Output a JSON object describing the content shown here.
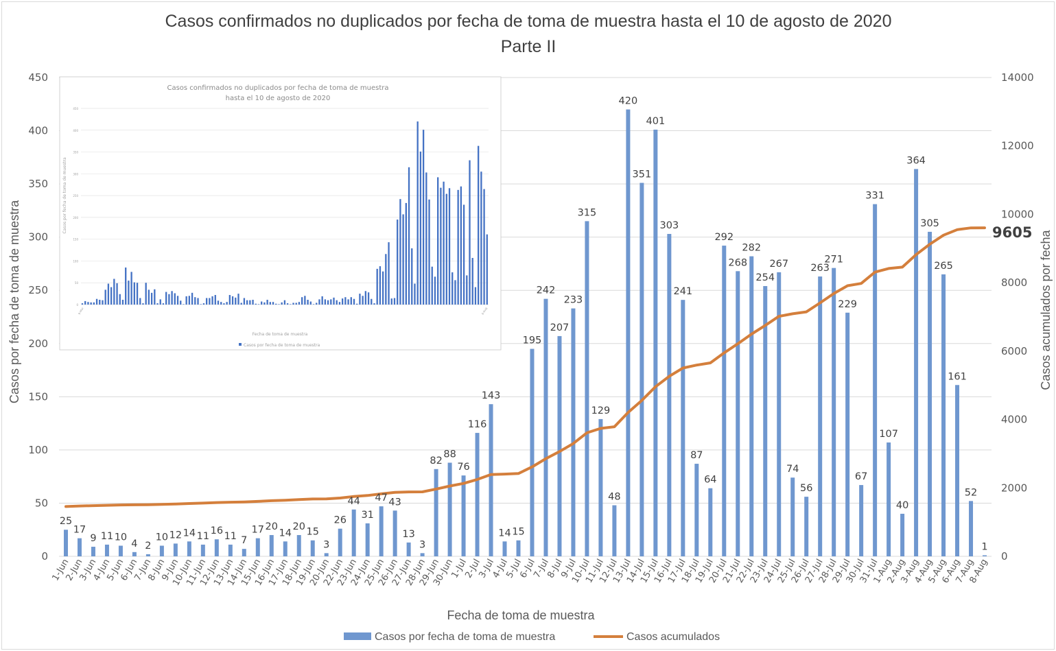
{
  "chart_data": {
    "type": "bar+line",
    "title": "Casos confirmados no duplicados por fecha de toma de muestra hasta el 10 de agosto de 2020",
    "subtitle": "Parte II",
    "xlabel": "Fecha de toma de muestra",
    "ylabel": "Casos por fecha de toma de muestra",
    "y2label": "Casos acumulados por fecha",
    "ylim": [
      0,
      450
    ],
    "yticks": [
      0,
      50,
      100,
      150,
      200,
      250,
      300,
      350,
      400,
      450
    ],
    "y2lim": [
      0,
      14000
    ],
    "y2ticks": [
      0,
      2000,
      4000,
      6000,
      8000,
      10000,
      12000,
      14000
    ],
    "grid": true,
    "legend_position": "bottom",
    "categories": [
      "1-Jun",
      "2-Jun",
      "3-Jun",
      "4-Jun",
      "5-Jun",
      "6-Jun",
      "7-Jun",
      "8-Jun",
      "9-Jun",
      "10-Jun",
      "11-Jun",
      "12-Jun",
      "13-Jun",
      "14-Jun",
      "15-Jun",
      "16-Jun",
      "17-Jun",
      "18-Jun",
      "19-Jun",
      "20-Jun",
      "22-Jun",
      "23-Jun",
      "24-Jun",
      "25-Jun",
      "26-Jun",
      "27-Jun",
      "28-Jun",
      "29-Jun",
      "30-Jun",
      "1-Jul",
      "2-Jul",
      "3-Jul",
      "4-Jul",
      "5-Jul",
      "6-Jul",
      "7-Jul",
      "8-Jul",
      "9-Jul",
      "10-Jul",
      "11-Jul",
      "12-Jul",
      "13-Jul",
      "14-Jul",
      "15-Jul",
      "16-Jul",
      "17-Jul",
      "18-Jul",
      "19-Jul",
      "20-Jul",
      "21-Jul",
      "22-Jul",
      "23-Jul",
      "24-Jul",
      "25-Jul",
      "26-Jul",
      "27-Jul",
      "28-Jul",
      "29-Jul",
      "30-Jul",
      "31-Jul",
      "1-Aug",
      "2-Aug",
      "3-Aug",
      "4-Aug",
      "5-Aug",
      "6-Aug",
      "7-Aug",
      "8-Aug"
    ],
    "series": [
      {
        "name": "Casos por fecha de toma de muestra",
        "type": "bar",
        "axis": "left",
        "color": "#6f97cf",
        "values": [
          25,
          17,
          9,
          11,
          10,
          4,
          2,
          10,
          12,
          14,
          11,
          16,
          11,
          7,
          17,
          20,
          14,
          20,
          15,
          3,
          26,
          44,
          31,
          47,
          43,
          13,
          3,
          82,
          88,
          76,
          116,
          143,
          14,
          15,
          195,
          242,
          207,
          233,
          315,
          129,
          48,
          420,
          351,
          401,
          303,
          241,
          87,
          64,
          292,
          268,
          282,
          254,
          267,
          74,
          56,
          263,
          271,
          229,
          67,
          331,
          107,
          40,
          364,
          305,
          265,
          161,
          52,
          1
        ]
      },
      {
        "name": "Casos acumulados",
        "type": "line",
        "axis": "right",
        "color": "#d47f3c",
        "values": [
          1456,
          1473,
          1482,
          1493,
          1503,
          1507,
          1509,
          1519,
          1531,
          1545,
          1556,
          1572,
          1583,
          1590,
          1607,
          1627,
          1641,
          1661,
          1676,
          1679,
          1705,
          1749,
          1780,
          1827,
          1870,
          1883,
          1886,
          1968,
          2056,
          2132,
          2248,
          2391,
          2405,
          2420,
          2615,
          2857,
          3064,
          3297,
          3612,
          3741,
          3789,
          4209,
          4560,
          4961,
          5264,
          5505,
          5592,
          5656,
          5948,
          6216,
          6498,
          6752,
          7019,
          7093,
          7149,
          7412,
          7683,
          7912,
          7979,
          8310,
          8417,
          8457,
          8821,
          9126,
          9391,
          9552,
          9604,
          9605
        ],
        "end_label": "9605"
      }
    ],
    "annotations": [
      "9605"
    ],
    "inset": {
      "description": "Embedded image of earlier chart (Parte I)",
      "title_line1": "Casos confirmados no duplicados por fecha de toma de muestra",
      "title_line2": "hasta el 10 de agosto de 2020",
      "ylabel": "Casos por fecha de toma de muestra",
      "xlabel": "Fecha de toma de muestra",
      "legend": "Casos por fecha de toma de muestra",
      "yticks": [
        0,
        50,
        100,
        150,
        200,
        250,
        300,
        350,
        400,
        450
      ],
      "x_range": [
        "9-Mar",
        "6-Aug"
      ],
      "approx_values": [
        3,
        8,
        6,
        5,
        5,
        13,
        11,
        10,
        34,
        48,
        40,
        59,
        49,
        24,
        11,
        85,
        55,
        75,
        51,
        50,
        15,
        3,
        50,
        34,
        27,
        35,
        3,
        12,
        3,
        29,
        24,
        31,
        26,
        20,
        9,
        1,
        19,
        20,
        27,
        17,
        15,
        1,
        3,
        15,
        15,
        19,
        22,
        9,
        6,
        3,
        6,
        22,
        19,
        16,
        25,
        4,
        15,
        10,
        10,
        11,
        2,
        1,
        7,
        5,
        11,
        6,
        6,
        2,
        1,
        5,
        10,
        3,
        1,
        4,
        4,
        6,
        17,
        20,
        11,
        7,
        1,
        4,
        12,
        19,
        12,
        10,
        12,
        16,
        10,
        6,
        14,
        17,
        12,
        17,
        13,
        2,
        25,
        20,
        31,
        28,
        13,
        3,
        82,
        88,
        76,
        116,
        143,
        14,
        15,
        195,
        242,
        207,
        233,
        315,
        129,
        48,
        420,
        351,
        401,
        303,
        241,
        87,
        64,
        292,
        268,
        282,
        254,
        267,
        74,
        56,
        263,
        271,
        229,
        67,
        331,
        107,
        40,
        364,
        305,
        265,
        161
      ]
    }
  }
}
